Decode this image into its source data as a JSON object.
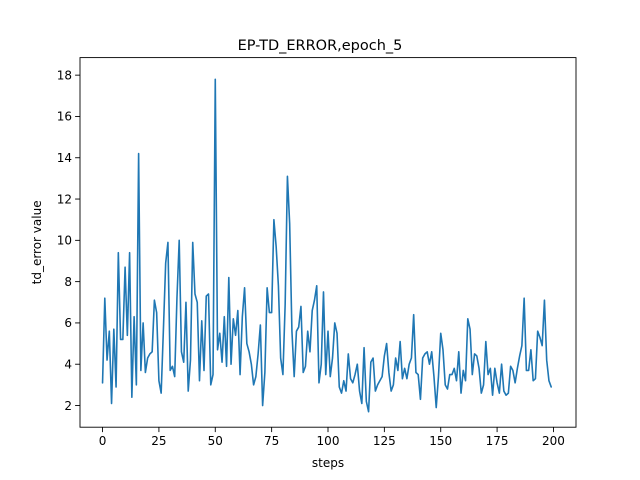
{
  "chart_data": {
    "type": "line",
    "title": "EP-TD_ERROR,epoch_5",
    "xlabel": "steps",
    "ylabel": "td_error value",
    "xlim": [
      -10,
      210
    ],
    "ylim": [
      0.95,
      18.85
    ],
    "xticks": [
      0,
      25,
      50,
      75,
      100,
      125,
      150,
      175,
      200
    ],
    "yticks": [
      2,
      4,
      6,
      8,
      10,
      12,
      14,
      16,
      18
    ],
    "grid": false,
    "legend": "none",
    "colors": {
      "series": "#1f77b4"
    },
    "series": [
      {
        "values": [
          3.1,
          7.2,
          4.2,
          5.6,
          2.1,
          5.7,
          2.9,
          9.4,
          5.2,
          5.2,
          8.7,
          5.4,
          9.4,
          2.4,
          6.3,
          3.0,
          14.2,
          3.7,
          6.0,
          3.6,
          4.3,
          4.5,
          4.6,
          7.1,
          6.5,
          3.2,
          2.6,
          5.7,
          8.9,
          9.9,
          3.7,
          3.9,
          3.4,
          7.2,
          10.0,
          4.6,
          4.1,
          7.0,
          2.7,
          4.2,
          9.9,
          7.4,
          7.0,
          3.2,
          6.1,
          3.7,
          7.3,
          7.4,
          3.0,
          3.5,
          17.8,
          4.7,
          5.5,
          4.1,
          6.3,
          3.9,
          8.2,
          4.0,
          6.2,
          5.4,
          6.6,
          3.5,
          6.3,
          7.7,
          5.0,
          4.6,
          4.0,
          3.0,
          3.4,
          4.5,
          5.9,
          2.0,
          3.6,
          7.7,
          6.5,
          6.5,
          11.0,
          9.7,
          7.8,
          4.3,
          3.5,
          6.9,
          13.1,
          10.8,
          5.6,
          3.4,
          5.6,
          5.8,
          6.8,
          3.6,
          3.9,
          5.6,
          4.6,
          6.6,
          7.1,
          7.8,
          3.1,
          4.0,
          7.5,
          3.5,
          5.6,
          3.4,
          4.3,
          6.0,
          5.5,
          2.9,
          2.6,
          3.2,
          2.7,
          4.5,
          3.3,
          3.1,
          3.5,
          4.0,
          2.7,
          2.1,
          4.8,
          2.2,
          1.7,
          4.1,
          4.3,
          2.7,
          3.0,
          3.2,
          3.4,
          4.4,
          5.0,
          3.6,
          2.7,
          3.0,
          4.3,
          3.7,
          5.1,
          3.3,
          3.8,
          3.3,
          4.0,
          4.3,
          6.4,
          3.6,
          3.5,
          2.3,
          4.3,
          4.5,
          4.6,
          4.0,
          4.6,
          3.4,
          1.9,
          3.4,
          5.5,
          4.7,
          3.0,
          2.8,
          3.5,
          3.5,
          3.8,
          3.2,
          4.6,
          2.6,
          3.7,
          3.2,
          6.2,
          5.7,
          3.5,
          4.5,
          4.4,
          3.8,
          2.6,
          3.0,
          5.1,
          3.5,
          3.8,
          2.5,
          3.8,
          3.1,
          2.6,
          4.0,
          2.7,
          2.5,
          2.6,
          3.9,
          3.7,
          3.1,
          3.8,
          4.4,
          4.9,
          7.2,
          3.7,
          3.7,
          4.7,
          3.2,
          3.3,
          5.6,
          5.3,
          4.9,
          7.1,
          4.2,
          3.2,
          2.9
        ]
      }
    ]
  }
}
